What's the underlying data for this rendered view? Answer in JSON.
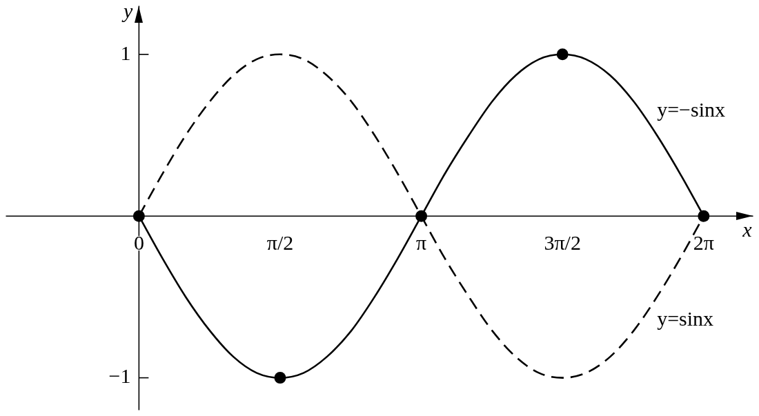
{
  "chart_data": {
    "type": "line",
    "xlabel": "x",
    "ylabel": "y",
    "xlim": [
      -1.48,
      6.83
    ],
    "ylim": [
      -1.2,
      1.3
    ],
    "xticks": [
      0,
      {
        "value": 1.57,
        "label": "π/2"
      },
      {
        "value": 3.14,
        "label": "π"
      },
      {
        "value": 4.71,
        "label": "3π/2"
      },
      {
        "value": 6.28,
        "label": "2π"
      }
    ],
    "yticks": [
      {
        "value": -1,
        "label": "−1"
      },
      1
    ],
    "x": [
      0,
      0.26,
      0.52,
      0.79,
      1.05,
      1.31,
      1.57,
      1.83,
      2.09,
      2.36,
      2.62,
      2.88,
      3.14,
      3.4,
      3.67,
      3.93,
      4.19,
      4.45,
      4.71,
      4.97,
      5.24,
      5.5,
      5.76,
      6.02,
      6.28
    ],
    "series": [
      {
        "name": "y=sinx",
        "color": "#000000",
        "line_style": "dashed",
        "marker": "none",
        "values": [
          0,
          0.26,
          0.5,
          0.71,
          0.87,
          0.97,
          1,
          0.97,
          0.87,
          0.71,
          0.5,
          0.26,
          0,
          -0.26,
          -0.5,
          -0.71,
          -0.87,
          -0.97,
          -1,
          -0.97,
          -0.87,
          -0.71,
          -0.5,
          -0.26,
          0
        ]
      },
      {
        "name": "y=−sinx",
        "color": "#000000",
        "line_style": "solid",
        "marker": "none",
        "values": [
          0,
          -0.26,
          -0.5,
          -0.71,
          -0.87,
          -0.97,
          -1,
          -0.97,
          -0.87,
          -0.71,
          -0.5,
          -0.26,
          0,
          0.26,
          0.5,
          0.71,
          0.87,
          0.97,
          1,
          0.97,
          0.87,
          0.71,
          0.5,
          0.26,
          0
        ]
      },
      {
        "type": "scatter",
        "color": "#000000",
        "marker": "circle",
        "x": [
          0,
          1.57,
          3.14,
          4.71,
          6.28
        ],
        "values": [
          0,
          -1,
          0,
          1,
          0
        ]
      }
    ]
  }
}
